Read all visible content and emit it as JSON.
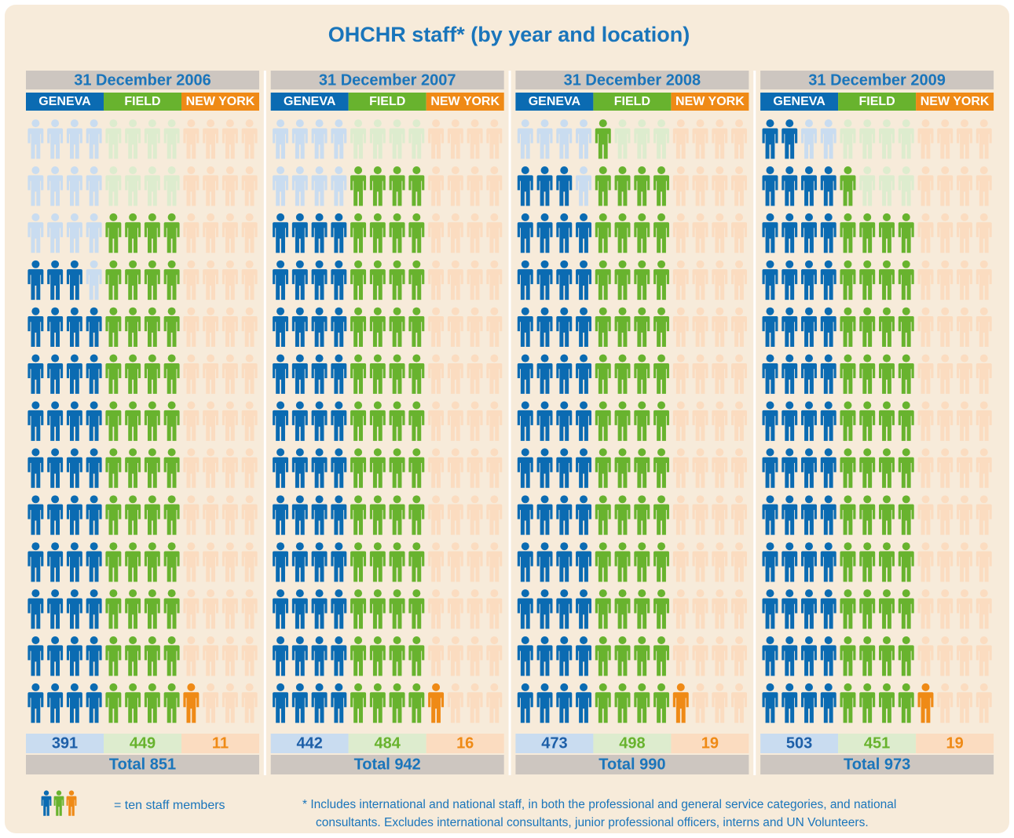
{
  "chart_data": {
    "type": "pictogram",
    "title": "OHCHR staff* (by year and location)",
    "unit": 10,
    "categories": [
      "GENEVA",
      "FIELD",
      "NEW YORK"
    ],
    "colors": [
      "#0b6bb2",
      "#68b32e",
      "#ef8a16"
    ],
    "light_colors": [
      "#c9dcf0",
      "#ddecce",
      "#fbdcc0"
    ],
    "panels": [
      {
        "title": "31 December 2006",
        "values": [
          391,
          449,
          11
        ],
        "total_label": "Total 851"
      },
      {
        "title": "31 December 2007",
        "values": [
          442,
          484,
          16
        ],
        "total_label": "Total 942"
      },
      {
        "title": "31 December 2008",
        "values": [
          473,
          498,
          19
        ],
        "total_label": "Total 990"
      },
      {
        "title": "31 December 2009",
        "values": [
          503,
          451,
          19
        ],
        "total_label": "Total 973"
      }
    ],
    "legend_label": "= ten staff members",
    "footnote": [
      "* Includes international and national staff, in both the professional and general service categories, and national",
      "consultants. Excludes international consultants, junior professional officers, interns and UN Volunteers."
    ]
  }
}
